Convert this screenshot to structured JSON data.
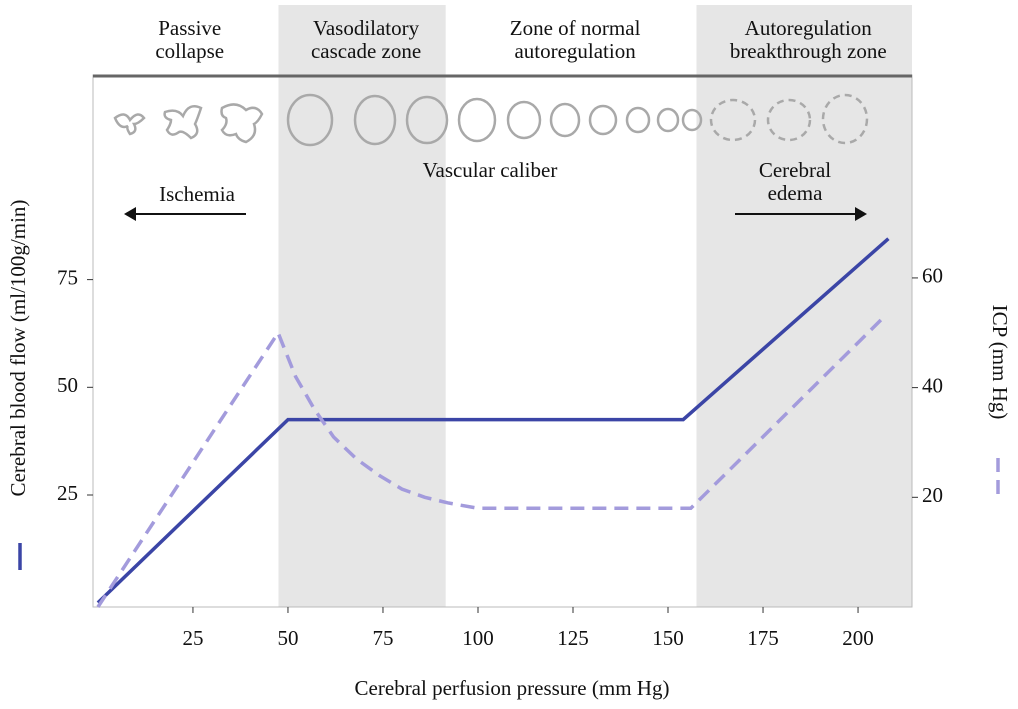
{
  "chart_data": {
    "type": "line",
    "xlabel": "Cerebral perfusion pressure (mm Hg)",
    "ylabel": "Cerebral blood flow (ml/100g/min)",
    "y2label": "ICP (mm Hg)",
    "xlim": [
      -1.3,
      214.2
    ],
    "ylim": [
      -1,
      122.5
    ],
    "y2lim": [
      0,
      97
    ],
    "xticks": [
      25,
      50,
      75,
      100,
      125,
      150,
      175,
      200
    ],
    "yticks": [
      25,
      50,
      75
    ],
    "y2ticks": [
      20,
      40,
      60
    ],
    "zones": [
      {
        "lines": [
          "Passive",
          "collapse"
        ],
        "from": -1.3,
        "to": 47.5,
        "shaded": false
      },
      {
        "lines": [
          "Vasodilatory",
          "cascade zone"
        ],
        "from": 47.5,
        "to": 91.5,
        "shaded": true
      },
      {
        "lines": [
          "Zone of normal",
          "autoregulation"
        ],
        "from": 91.5,
        "to": 157.5,
        "shaded": false
      },
      {
        "lines": [
          "Autoregulation",
          "breakthrough zone"
        ],
        "from": 157.5,
        "to": 214.2,
        "shaded": true
      }
    ],
    "annotations": {
      "ischemia": "Ischemia",
      "caliber": "Vascular caliber",
      "edema": [
        "Cerebral",
        "edema"
      ]
    },
    "series": [
      {
        "color": "#3b45a6",
        "dashed": false,
        "x": [
          0,
          50,
          154,
          208
        ],
        "values": [
          0,
          42.5,
          42.5,
          84.5
        ]
      },
      {
        "color": "#a39bdc",
        "dashed": true,
        "axis": "y2",
        "x": [
          0,
          47.4,
          52,
          57,
          62,
          68,
          74,
          80,
          86,
          92,
          100,
          156,
          207
        ],
        "values": [
          0,
          50,
          42,
          36,
          31,
          27,
          24,
          21.5,
          20,
          19,
          18,
          18,
          53
        ]
      }
    ]
  }
}
